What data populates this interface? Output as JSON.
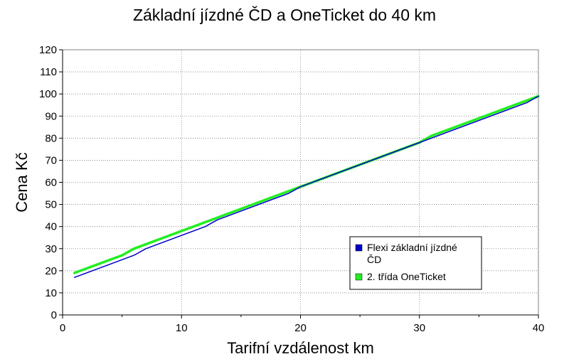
{
  "chart_data": {
    "type": "line",
    "title": "Základní jízdné ČD a OneTicket do 40 km",
    "xlabel": "Tarifní vzdálenost km",
    "ylabel": "Cena Kč",
    "xlim": [
      0,
      40
    ],
    "ylim": [
      0,
      120
    ],
    "xticks": [
      0,
      10,
      20,
      30,
      40
    ],
    "yticks": [
      0,
      10,
      20,
      30,
      40,
      50,
      60,
      70,
      80,
      90,
      100,
      110,
      120
    ],
    "grid": true,
    "legend_position": "bottom-right",
    "series": [
      {
        "name": "Flexi základní jízdné ČD",
        "color": "#0000cc",
        "x": [
          1,
          5,
          6,
          7,
          12,
          13,
          19,
          20,
          30,
          31,
          39,
          40
        ],
        "y": [
          17,
          25,
          27,
          30,
          40,
          43,
          55,
          58,
          78,
          80,
          96,
          99
        ]
      },
      {
        "name": "2. třída OneTicket",
        "color": "#22ee22",
        "x": [
          1,
          5,
          6,
          19,
          20,
          30,
          31,
          40
        ],
        "y": [
          19,
          27,
          30,
          56,
          58,
          78,
          81,
          99
        ]
      }
    ]
  }
}
